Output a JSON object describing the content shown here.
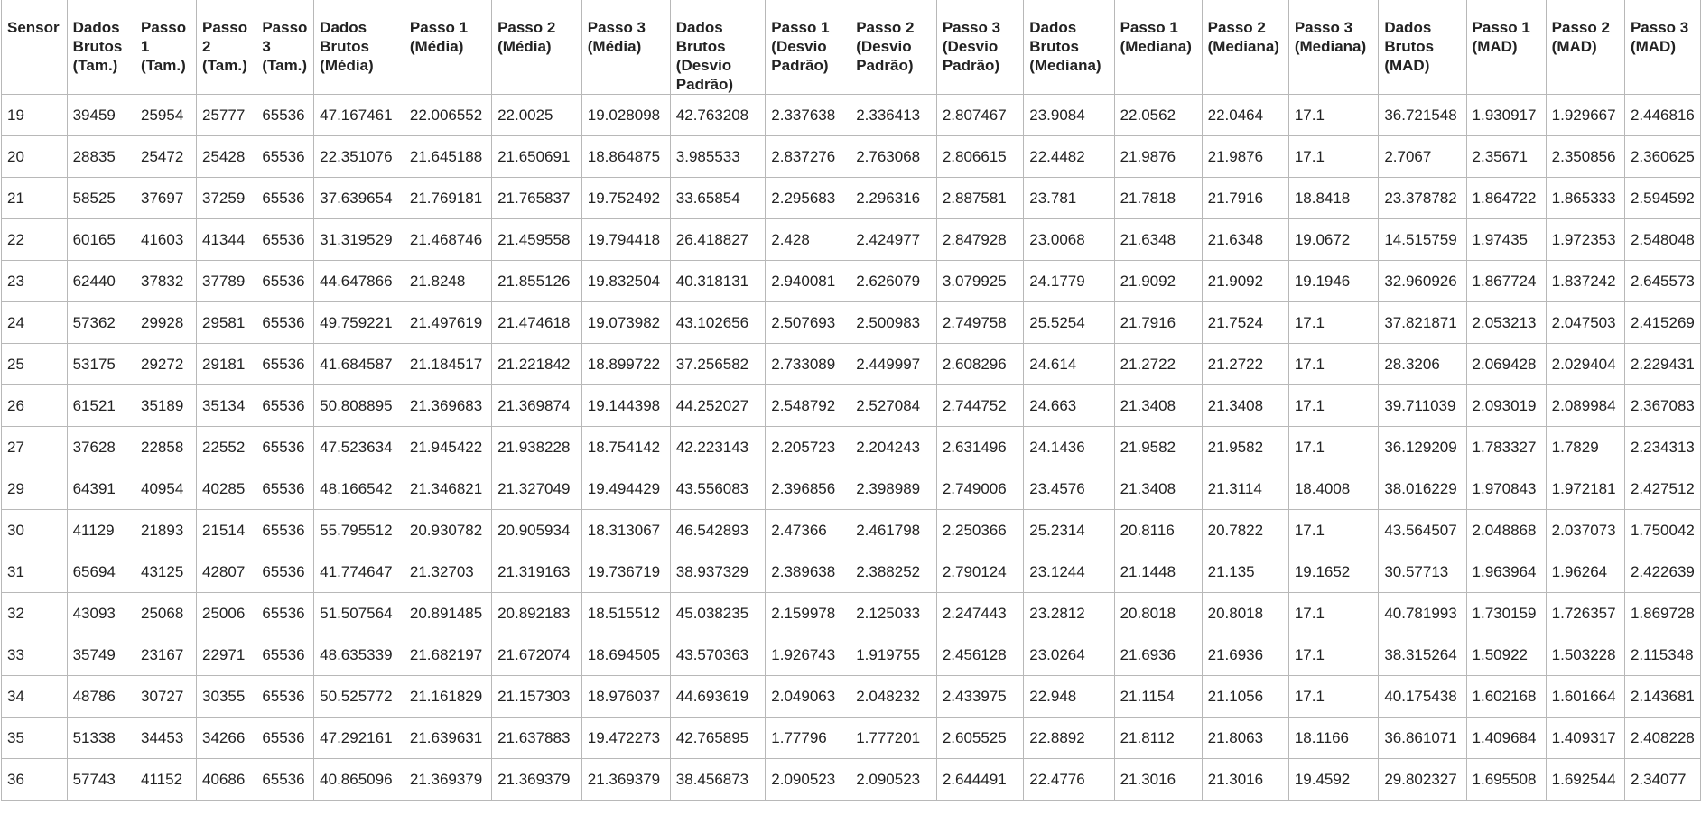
{
  "table": {
    "headers": [
      "Sensor",
      "Dados Brutos (Tam.)",
      "Passo 1 (Tam.)",
      "Passo 2 (Tam.)",
      "Passo 3 (Tam.)",
      "Dados Brutos (Média)",
      "Passo 1 (Média)",
      "Passo 2 (Média)",
      "Passo 3 (Média)",
      "Dados Brutos (Desvio Padrão)",
      "Passo 1 (Desvio Padrão)",
      "Passo 2 (Desvio Padrão)",
      "Passo 3 (Desvio Padrão)",
      "Dados Brutos (Mediana)",
      "Passo 1 (Mediana)",
      "Passo 2 (Mediana)",
      "Passo 3 (Mediana)",
      "Dados Brutos (MAD)",
      "Passo 1 (MAD)",
      "Passo 2 (MAD)",
      "Passo 3 (MAD)"
    ],
    "rows": [
      [
        "19",
        "39459",
        "25954",
        "25777",
        "65536",
        "47.167461",
        "22.006552",
        "22.0025",
        "19.028098",
        "42.763208",
        "2.337638",
        "2.336413",
        "2.807467",
        "23.9084",
        "22.0562",
        "22.0464",
        "17.1",
        "36.721548",
        "1.930917",
        "1.929667",
        "2.446816"
      ],
      [
        "20",
        "28835",
        "25472",
        "25428",
        "65536",
        "22.351076",
        "21.645188",
        "21.650691",
        "18.864875",
        "3.985533",
        "2.837276",
        "2.763068",
        "2.806615",
        "22.4482",
        "21.9876",
        "21.9876",
        "17.1",
        "2.7067",
        "2.35671",
        "2.350856",
        "2.360625"
      ],
      [
        "21",
        "58525",
        "37697",
        "37259",
        "65536",
        "37.639654",
        "21.769181",
        "21.765837",
        "19.752492",
        "33.65854",
        "2.295683",
        "2.296316",
        "2.887581",
        "23.781",
        "21.7818",
        "21.7916",
        "18.8418",
        "23.378782",
        "1.864722",
        "1.865333",
        "2.594592"
      ],
      [
        "22",
        "60165",
        "41603",
        "41344",
        "65536",
        "31.319529",
        "21.468746",
        "21.459558",
        "19.794418",
        "26.418827",
        "2.428",
        "2.424977",
        "2.847928",
        "23.0068",
        "21.6348",
        "21.6348",
        "19.0672",
        "14.515759",
        "1.97435",
        "1.972353",
        "2.548048"
      ],
      [
        "23",
        "62440",
        "37832",
        "37789",
        "65536",
        "44.647866",
        "21.8248",
        "21.855126",
        "19.832504",
        "40.318131",
        "2.940081",
        "2.626079",
        "3.079925",
        "24.1779",
        "21.9092",
        "21.9092",
        "19.1946",
        "32.960926",
        "1.867724",
        "1.837242",
        "2.645573"
      ],
      [
        "24",
        "57362",
        "29928",
        "29581",
        "65536",
        "49.759221",
        "21.497619",
        "21.474618",
        "19.073982",
        "43.102656",
        "2.507693",
        "2.500983",
        "2.749758",
        "25.5254",
        "21.7916",
        "21.7524",
        "17.1",
        "37.821871",
        "2.053213",
        "2.047503",
        "2.415269"
      ],
      [
        "25",
        "53175",
        "29272",
        "29181",
        "65536",
        "41.684587",
        "21.184517",
        "21.221842",
        "18.899722",
        "37.256582",
        "2.733089",
        "2.449997",
        "2.608296",
        "24.614",
        "21.2722",
        "21.2722",
        "17.1",
        "28.3206",
        "2.069428",
        "2.029404",
        "2.229431"
      ],
      [
        "26",
        "61521",
        "35189",
        "35134",
        "65536",
        "50.808895",
        "21.369683",
        "21.369874",
        "19.144398",
        "44.252027",
        "2.548792",
        "2.527084",
        "2.744752",
        "24.663",
        "21.3408",
        "21.3408",
        "17.1",
        "39.711039",
        "2.093019",
        "2.089984",
        "2.367083"
      ],
      [
        "27",
        "37628",
        "22858",
        "22552",
        "65536",
        "47.523634",
        "21.945422",
        "21.938228",
        "18.754142",
        "42.223143",
        "2.205723",
        "2.204243",
        "2.631496",
        "24.1436",
        "21.9582",
        "21.9582",
        "17.1",
        "36.129209",
        "1.783327",
        "1.7829",
        "2.234313"
      ],
      [
        "29",
        "64391",
        "40954",
        "40285",
        "65536",
        "48.166542",
        "21.346821",
        "21.327049",
        "19.494429",
        "43.556083",
        "2.396856",
        "2.398989",
        "2.749006",
        "23.4576",
        "21.3408",
        "21.3114",
        "18.4008",
        "38.016229",
        "1.970843",
        "1.972181",
        "2.427512"
      ],
      [
        "30",
        "41129",
        "21893",
        "21514",
        "65536",
        "55.795512",
        "20.930782",
        "20.905934",
        "18.313067",
        "46.542893",
        "2.47366",
        "2.461798",
        "2.250366",
        "25.2314",
        "20.8116",
        "20.7822",
        "17.1",
        "43.564507",
        "2.048868",
        "2.037073",
        "1.750042"
      ],
      [
        "31",
        "65694",
        "43125",
        "42807",
        "65536",
        "41.774647",
        "21.32703",
        "21.319163",
        "19.736719",
        "38.937329",
        "2.389638",
        "2.388252",
        "2.790124",
        "23.1244",
        "21.1448",
        "21.135",
        "19.1652",
        "30.57713",
        "1.963964",
        "1.96264",
        "2.422639"
      ],
      [
        "32",
        "43093",
        "25068",
        "25006",
        "65536",
        "51.507564",
        "20.891485",
        "20.892183",
        "18.515512",
        "45.038235",
        "2.159978",
        "2.125033",
        "2.247443",
        "23.2812",
        "20.8018",
        "20.8018",
        "17.1",
        "40.781993",
        "1.730159",
        "1.726357",
        "1.869728"
      ],
      [
        "33",
        "35749",
        "23167",
        "22971",
        "65536",
        "48.635339",
        "21.682197",
        "21.672074",
        "18.694505",
        "43.570363",
        "1.926743",
        "1.919755",
        "2.456128",
        "23.0264",
        "21.6936",
        "21.6936",
        "17.1",
        "38.315264",
        "1.50922",
        "1.503228",
        "2.115348"
      ],
      [
        "34",
        "48786",
        "30727",
        "30355",
        "65536",
        "50.525772",
        "21.161829",
        "21.157303",
        "18.976037",
        "44.693619",
        "2.049063",
        "2.048232",
        "2.433975",
        "22.948",
        "21.1154",
        "21.1056",
        "17.1",
        "40.175438",
        "1.602168",
        "1.601664",
        "2.143681"
      ],
      [
        "35",
        "51338",
        "34453",
        "34266",
        "65536",
        "47.292161",
        "21.639631",
        "21.637883",
        "19.472273",
        "42.765895",
        "1.77796",
        "1.777201",
        "2.605525",
        "22.8892",
        "21.8112",
        "21.8063",
        "18.1166",
        "36.861071",
        "1.409684",
        "1.409317",
        "2.408228"
      ],
      [
        "36",
        "57743",
        "41152",
        "40686",
        "65536",
        "40.865096",
        "21.369379",
        "21.369379",
        "21.369379",
        "38.456873",
        "2.090523",
        "2.090523",
        "2.644491",
        "22.4776",
        "21.3016",
        "21.3016",
        "19.4592",
        "29.802327",
        "1.695508",
        "1.692544",
        "2.34077"
      ]
    ]
  }
}
